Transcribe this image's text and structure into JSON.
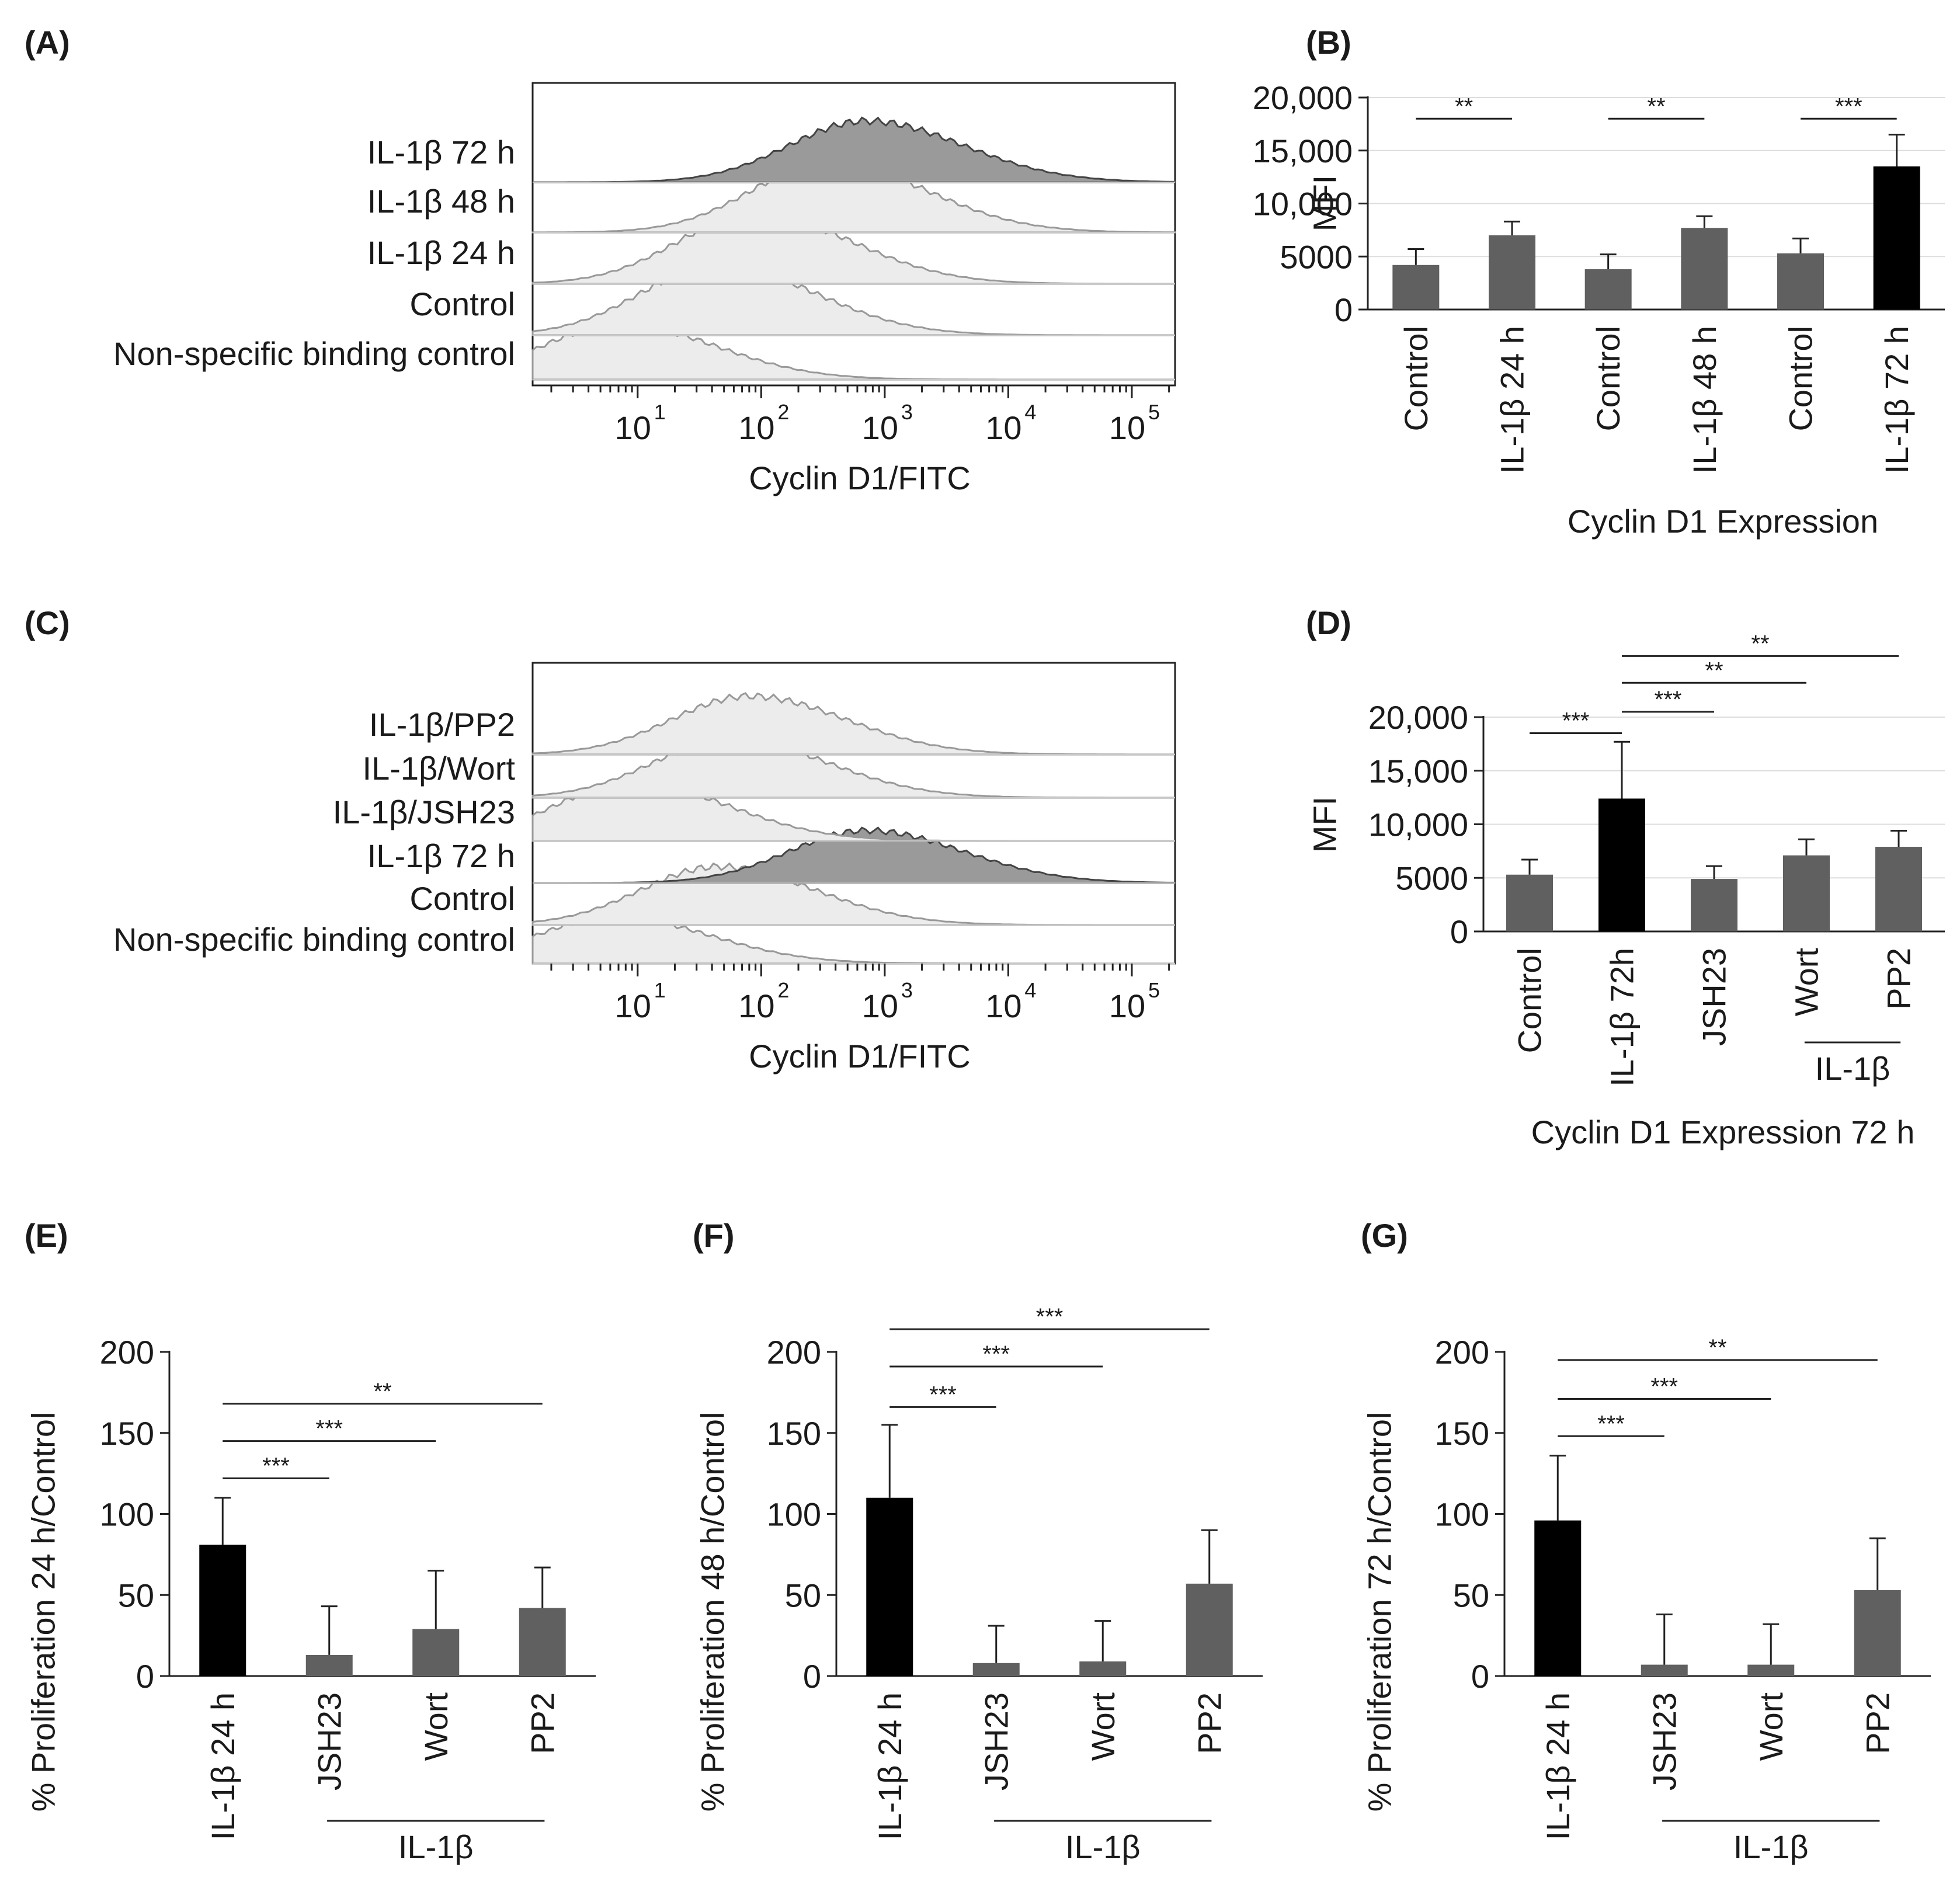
{
  "figure": {
    "kind": "multi-panel flow cytometry and bar chart figure"
  },
  "chart_data": [
    {
      "panel": "(A)",
      "type": "histogram",
      "xlabel": "Cyclin D1/FITC",
      "xscale": "log",
      "xticks": [
        "10",
        "10",
        "10",
        "10",
        "10"
      ],
      "xtick_exponents": [
        "1",
        "2",
        "3",
        "4",
        "5"
      ],
      "xtick_values": [
        10,
        100,
        1000,
        10000,
        100000
      ],
      "tracks": [
        {
          "label": "IL-1β 72 h",
          "peak_log10": 2.85,
          "shade": "dark"
        },
        {
          "label": "IL-1β 48 h",
          "peak_log10": 2.55,
          "shade": "light"
        },
        {
          "label": "IL-1β 24 h",
          "peak_log10": 1.95,
          "shade": "light"
        },
        {
          "label": "Control",
          "peak_log10": 1.65,
          "shade": "light"
        },
        {
          "label": "Non-specific binding control",
          "peak_log10": 0.85,
          "shade": "light"
        }
      ]
    },
    {
      "panel": "(B)",
      "type": "bar",
      "ylabel": "MFI",
      "xlabel": "Cyclin D1 Expression",
      "ylim": [
        0,
        20000
      ],
      "yticks": [
        0,
        5000,
        10000,
        15000,
        20000
      ],
      "ytick_labels": [
        "0",
        "5000",
        "10,000",
        "15,000",
        "20,000"
      ],
      "categories": [
        "Control",
        "IL-1β 24 h",
        "Control",
        "IL-1β 48 h",
        "Control",
        "IL-1β 72 h"
      ],
      "values": [
        4200,
        7000,
        3800,
        7700,
        5300,
        13500
      ],
      "errors": [
        1500,
        1300,
        1400,
        1100,
        1400,
        3000
      ],
      "bar_colors": [
        "#606060",
        "#606060",
        "#606060",
        "#606060",
        "#606060",
        "#000000"
      ],
      "significance": [
        {
          "from": 0,
          "to": 1,
          "label": "**",
          "level": 18000
        },
        {
          "from": 2,
          "to": 3,
          "label": "**",
          "level": 18000
        },
        {
          "from": 4,
          "to": 5,
          "label": "***",
          "level": 18000
        }
      ]
    },
    {
      "panel": "(C)",
      "type": "histogram",
      "xlabel": "Cyclin D1/FITC",
      "xscale": "log",
      "xticks": [
        "10",
        "10",
        "10",
        "10",
        "10"
      ],
      "xtick_exponents": [
        "1",
        "2",
        "3",
        "4",
        "5"
      ],
      "xtick_values": [
        10,
        100,
        1000,
        10000,
        100000
      ],
      "tracks": [
        {
          "label": "IL-1β/PP2",
          "peak_log10": 1.9,
          "shade": "light"
        },
        {
          "label": "IL-1β/Wort",
          "peak_log10": 1.75,
          "shade": "light"
        },
        {
          "label": "IL-1β/JSH23",
          "peak_log10": 0.95,
          "shade": "light"
        },
        {
          "label": "IL-1β 72 h",
          "peak_log10": 2.85,
          "shade": "dark"
        },
        {
          "label": "Control",
          "peak_log10": 1.65,
          "shade": "light"
        },
        {
          "label": "Non-specific binding control",
          "peak_log10": 0.8,
          "shade": "light"
        }
      ]
    },
    {
      "panel": "(D)",
      "type": "bar",
      "ylabel": "MFI",
      "xlabel": "Cyclin D1 Expression 72 h",
      "group_label": "IL-1β",
      "group_range": [
        3,
        4
      ],
      "ylim": [
        0,
        20000
      ],
      "yticks": [
        0,
        5000,
        10000,
        15000,
        20000
      ],
      "ytick_labels": [
        "0",
        "5000",
        "10,000",
        "15,000",
        "20,000"
      ],
      "categories": [
        "Control",
        "IL-1β 72h",
        "JSH23",
        "Wort",
        "PP2"
      ],
      "values": [
        5300,
        12400,
        4900,
        7100,
        7900
      ],
      "errors": [
        1400,
        5300,
        1200,
        1500,
        1500
      ],
      "bar_colors": [
        "#606060",
        "#000000",
        "#606060",
        "#606060",
        "#606060"
      ],
      "significance": [
        {
          "from": 0,
          "to": 1,
          "label": "***",
          "level": 18500
        },
        {
          "from": 1,
          "to": 2,
          "label": "***",
          "level": 20500
        },
        {
          "from": 1,
          "to": 3,
          "label": "**",
          "level": 23200
        },
        {
          "from": 1,
          "to": 4,
          "label": "**",
          "level": 25700
        }
      ]
    },
    {
      "panel": "(E)",
      "type": "bar",
      "ylabel": "% Proliferation 24 h/Control",
      "group_label": "IL-1β",
      "group_range": [
        1,
        3
      ],
      "ylim": [
        0,
        200
      ],
      "yticks": [
        0,
        50,
        100,
        150,
        200
      ],
      "ytick_labels": [
        "0",
        "50",
        "100",
        "150",
        "200"
      ],
      "categories": [
        "IL-1β 24 h",
        "JSH23",
        "Wort",
        "PP2"
      ],
      "values": [
        81,
        13,
        29,
        42
      ],
      "errors": [
        29,
        30,
        36,
        25
      ],
      "bar_colors": [
        "#000000",
        "#606060",
        "#606060",
        "#606060"
      ],
      "significance": [
        {
          "from": 0,
          "to": 1,
          "label": "***",
          "level": 122
        },
        {
          "from": 0,
          "to": 2,
          "label": "***",
          "level": 145
        },
        {
          "from": 0,
          "to": 3,
          "label": "**",
          "level": 168
        }
      ]
    },
    {
      "panel": "(F)",
      "type": "bar",
      "ylabel": "% Proliferation 48 h/Control",
      "group_label": "IL-1β",
      "group_range": [
        1,
        3
      ],
      "ylim": [
        0,
        200
      ],
      "yticks": [
        0,
        50,
        100,
        150,
        200
      ],
      "ytick_labels": [
        "0",
        "50",
        "100",
        "150",
        "200"
      ],
      "categories": [
        "IL-1β 24 h",
        "JSH23",
        "Wort",
        "PP2"
      ],
      "values": [
        110,
        8,
        9,
        57
      ],
      "errors": [
        45,
        23,
        25,
        33
      ],
      "bar_colors": [
        "#000000",
        "#606060",
        "#606060",
        "#606060"
      ],
      "significance": [
        {
          "from": 0,
          "to": 1,
          "label": "***",
          "level": 166
        },
        {
          "from": 0,
          "to": 2,
          "label": "***",
          "level": 191
        },
        {
          "from": 0,
          "to": 3,
          "label": "***",
          "level": 214
        }
      ]
    },
    {
      "panel": "(G)",
      "type": "bar",
      "ylabel": "% Proliferation 72 h/Control",
      "group_label": "IL-1β",
      "group_range": [
        1,
        3
      ],
      "ylim": [
        0,
        200
      ],
      "yticks": [
        0,
        50,
        100,
        150,
        200
      ],
      "ytick_labels": [
        "0",
        "50",
        "100",
        "150",
        "200"
      ],
      "categories": [
        "IL-1β 24 h",
        "JSH23",
        "Wort",
        "PP2"
      ],
      "values": [
        96,
        7,
        7,
        53
      ],
      "errors": [
        40,
        31,
        25,
        32
      ],
      "bar_colors": [
        "#000000",
        "#606060",
        "#606060",
        "#606060"
      ],
      "significance": [
        {
          "from": 0,
          "to": 1,
          "label": "***",
          "level": 148
        },
        {
          "from": 0,
          "to": 2,
          "label": "***",
          "level": 171
        },
        {
          "from": 0,
          "to": 3,
          "label": "**",
          "level": 195
        }
      ]
    }
  ]
}
